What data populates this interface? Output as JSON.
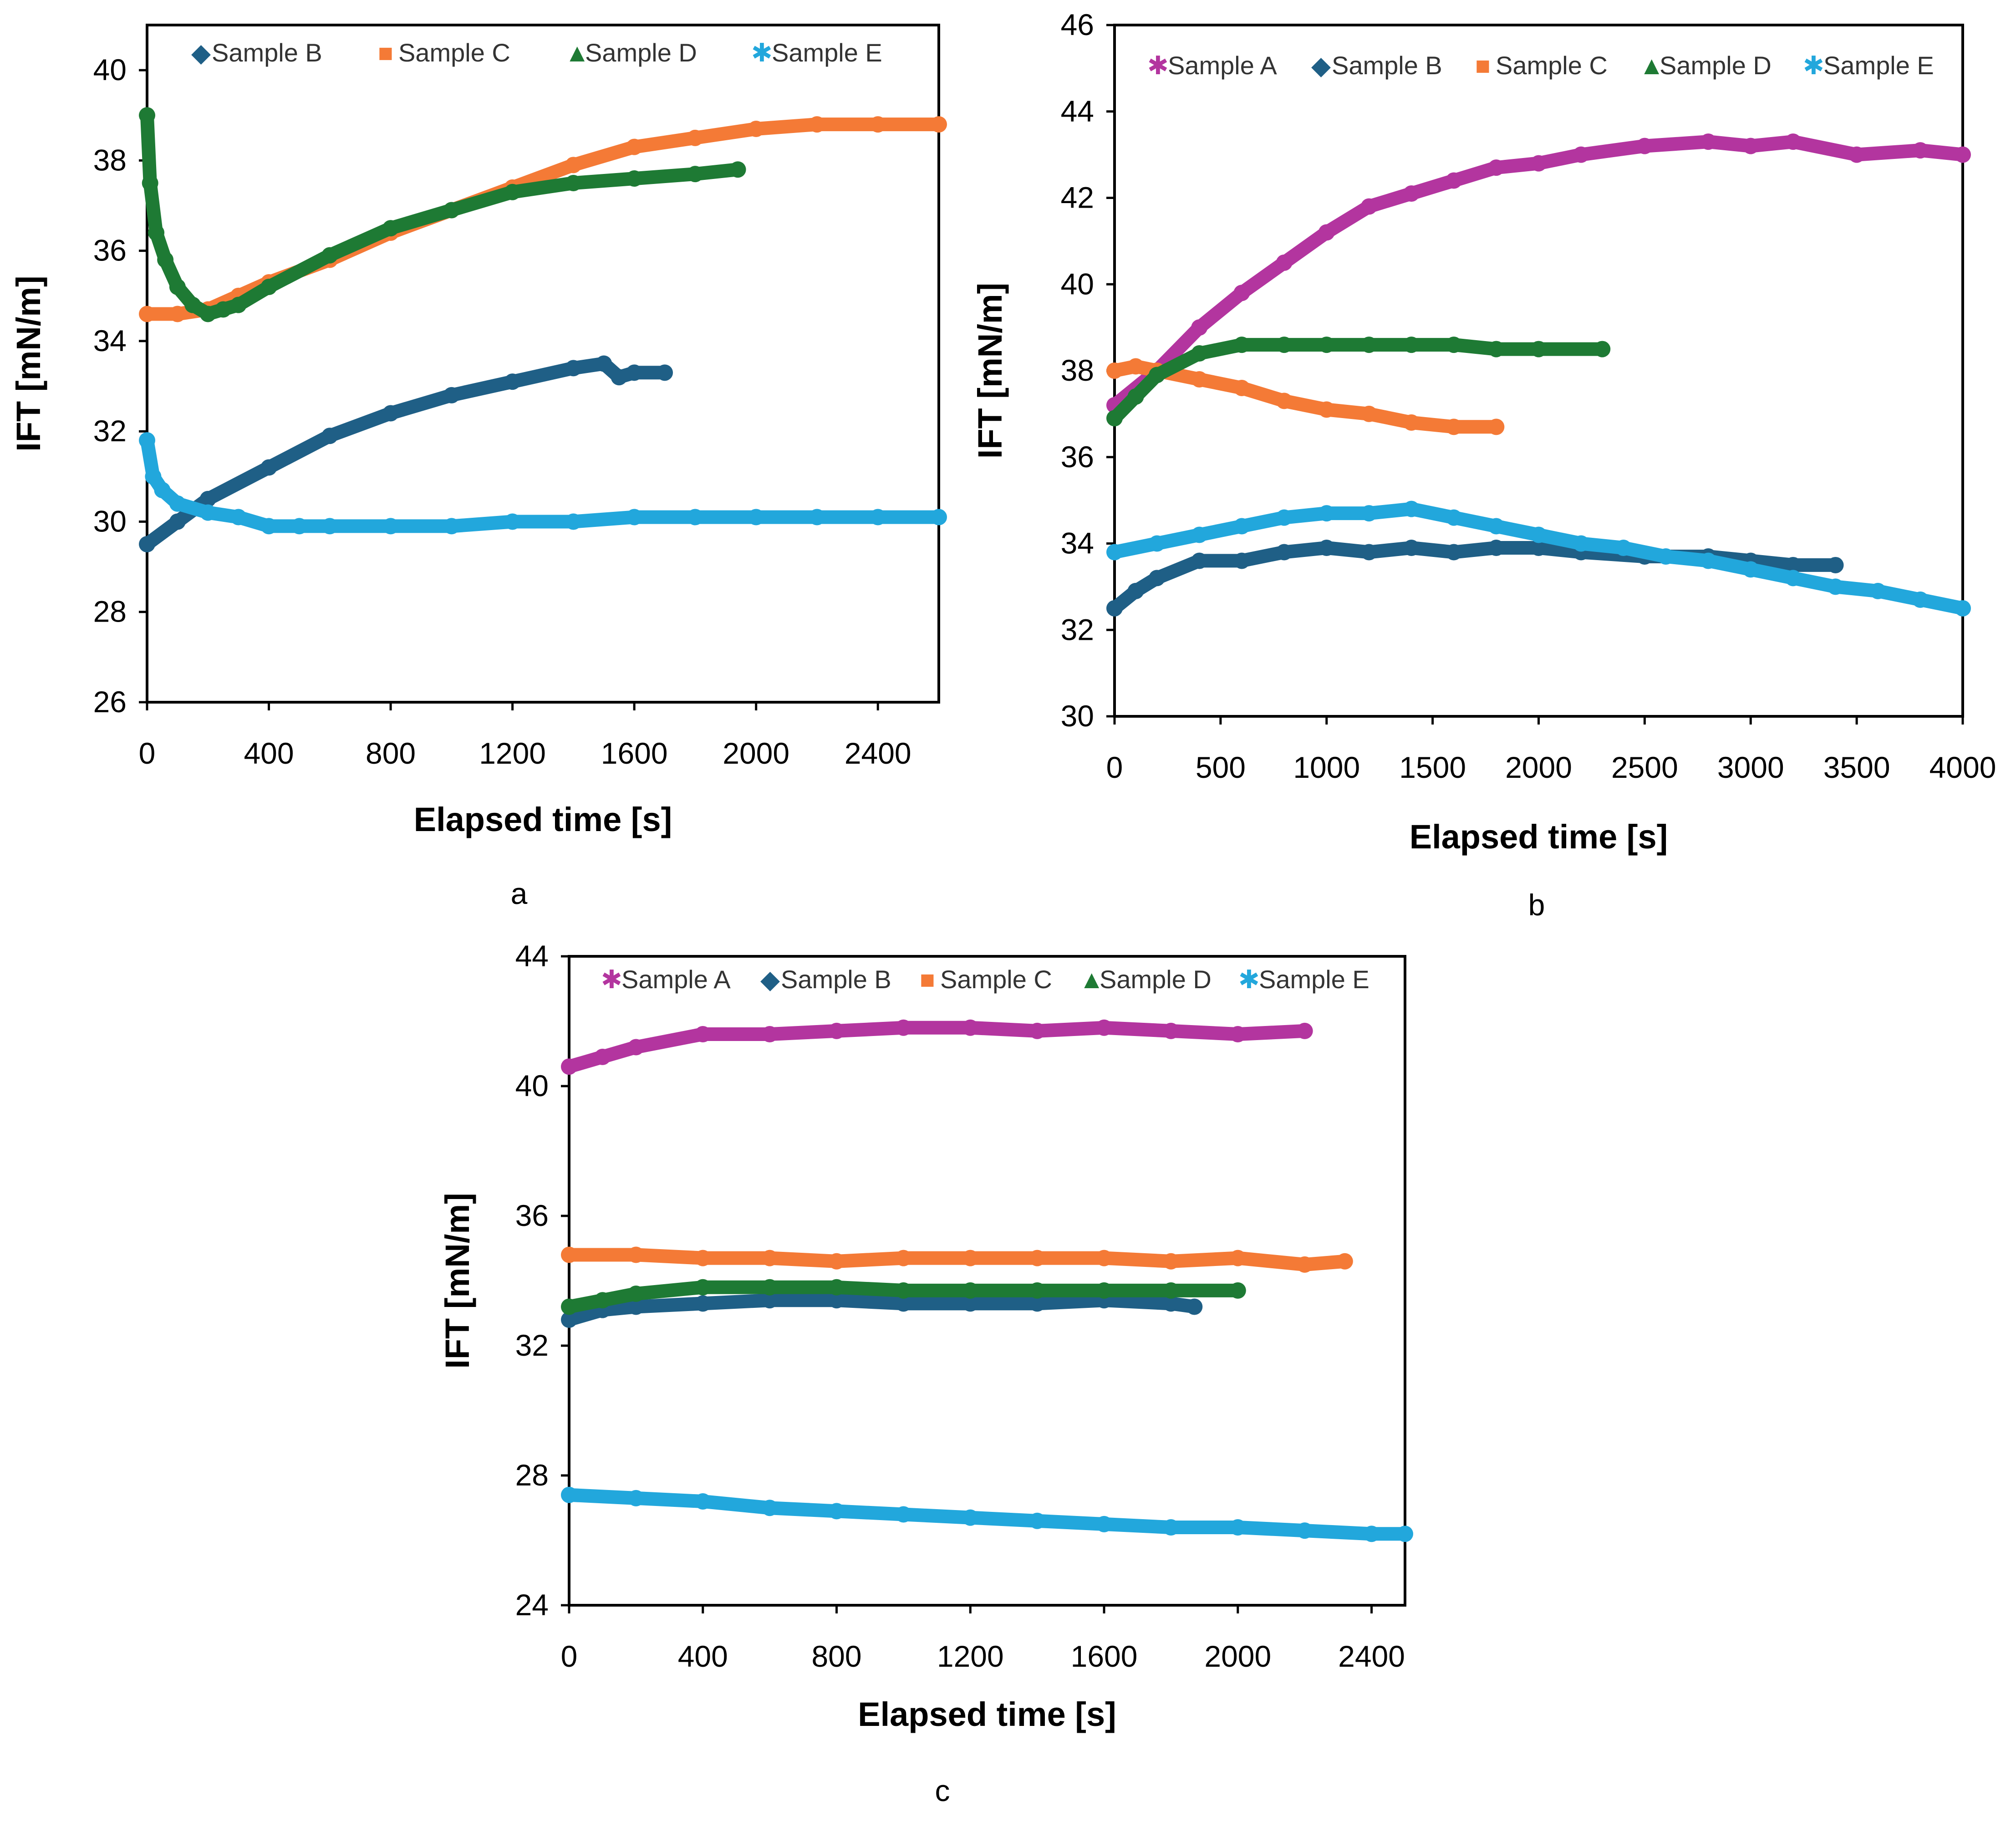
{
  "chart_data": [
    {
      "id": "a",
      "type": "line",
      "panel_label": "a",
      "xlabel": "Elapsed time [s]",
      "ylabel": "IFT [mN/m]",
      "xlim": [
        0,
        2600
      ],
      "ylim": [
        26,
        41
      ],
      "xticks": [
        0,
        400,
        800,
        1200,
        1600,
        2000,
        2400
      ],
      "yticks": [
        26,
        28,
        30,
        32,
        34,
        36,
        38,
        40
      ],
      "legend_position": "top",
      "series": [
        {
          "name": "Sample B",
          "color": "#1f5f86",
          "marker": "◆",
          "x": [
            0,
            100,
            200,
            400,
            600,
            800,
            1000,
            1200,
            1400,
            1500,
            1550,
            1600,
            1700
          ],
          "y": [
            29.5,
            30.0,
            30.5,
            31.2,
            31.9,
            32.4,
            32.8,
            33.1,
            33.4,
            33.5,
            33.2,
            33.3,
            33.3
          ]
        },
        {
          "name": "Sample C",
          "color": "#f47a36",
          "marker": "■",
          "x": [
            0,
            100,
            200,
            300,
            400,
            600,
            800,
            1000,
            1200,
            1400,
            1600,
            1800,
            2000,
            2200,
            2400,
            2600
          ],
          "y": [
            34.6,
            34.6,
            34.7,
            35.0,
            35.3,
            35.8,
            36.4,
            36.9,
            37.4,
            37.9,
            38.3,
            38.5,
            38.7,
            38.8,
            38.8,
            38.8
          ]
        },
        {
          "name": "Sample D",
          "color": "#1e7a34",
          "marker": "▲",
          "x": [
            0,
            10,
            30,
            60,
            100,
            150,
            200,
            250,
            300,
            400,
            600,
            800,
            1000,
            1200,
            1400,
            1600,
            1800,
            1940
          ],
          "y": [
            39.0,
            37.5,
            36.4,
            35.8,
            35.2,
            34.8,
            34.6,
            34.7,
            34.8,
            35.2,
            35.9,
            36.5,
            36.9,
            37.3,
            37.5,
            37.6,
            37.7,
            37.8
          ]
        },
        {
          "name": "Sample E",
          "color": "#22a7dc",
          "marker": "✱",
          "x": [
            0,
            20,
            50,
            100,
            200,
            300,
            400,
            500,
            600,
            800,
            1000,
            1200,
            1400,
            1600,
            1800,
            2000,
            2200,
            2400,
            2600
          ],
          "y": [
            31.8,
            31.0,
            30.7,
            30.4,
            30.2,
            30.1,
            29.9,
            29.9,
            29.9,
            29.9,
            29.9,
            30.0,
            30.0,
            30.1,
            30.1,
            30.1,
            30.1,
            30.1,
            30.1
          ]
        }
      ]
    },
    {
      "id": "b",
      "type": "line",
      "panel_label": "b",
      "xlabel": "Elapsed time [s]",
      "ylabel": "IFT [mN/m]",
      "xlim": [
        0,
        4000
      ],
      "ylim": [
        30,
        46
      ],
      "xticks": [
        0,
        500,
        1000,
        1500,
        2000,
        2500,
        3000,
        3500,
        4000
      ],
      "yticks": [
        30,
        32,
        34,
        36,
        38,
        40,
        42,
        44,
        46
      ],
      "legend_position": "top",
      "series": [
        {
          "name": "Sample A",
          "color": "#b3359f",
          "marker": "✱",
          "x": [
            0,
            200,
            400,
            600,
            800,
            1000,
            1200,
            1400,
            1600,
            1800,
            2000,
            2200,
            2500,
            2800,
            3000,
            3200,
            3500,
            3800,
            4000
          ],
          "y": [
            37.2,
            38.0,
            39.0,
            39.8,
            40.5,
            41.2,
            41.8,
            42.1,
            42.4,
            42.7,
            42.8,
            43.0,
            43.2,
            43.3,
            43.2,
            43.3,
            43.0,
            43.1,
            43.0
          ]
        },
        {
          "name": "Sample B",
          "color": "#1f5f86",
          "marker": "◆",
          "x": [
            0,
            100,
            200,
            400,
            600,
            800,
            1000,
            1200,
            1400,
            1600,
            1800,
            2000,
            2200,
            2500,
            2800,
            3000,
            3200,
            3400
          ],
          "y": [
            32.5,
            32.9,
            33.2,
            33.6,
            33.6,
            33.8,
            33.9,
            33.8,
            33.9,
            33.8,
            33.9,
            33.9,
            33.8,
            33.7,
            33.7,
            33.6,
            33.5,
            33.5
          ]
        },
        {
          "name": "Sample C",
          "color": "#f47a36",
          "marker": "■",
          "x": [
            0,
            100,
            200,
            400,
            600,
            800,
            1000,
            1200,
            1400,
            1600,
            1800
          ],
          "y": [
            38.0,
            38.1,
            38.0,
            37.8,
            37.6,
            37.3,
            37.1,
            37.0,
            36.8,
            36.7,
            36.7
          ]
        },
        {
          "name": "Sample D",
          "color": "#1e7a34",
          "marker": "▲",
          "x": [
            0,
            100,
            200,
            400,
            600,
            800,
            1000,
            1200,
            1400,
            1600,
            1800,
            2000,
            2300
          ],
          "y": [
            36.9,
            37.4,
            37.9,
            38.4,
            38.6,
            38.6,
            38.6,
            38.6,
            38.6,
            38.6,
            38.5,
            38.5,
            38.5
          ]
        },
        {
          "name": "Sample E",
          "color": "#22a7dc",
          "marker": "✱",
          "x": [
            0,
            200,
            400,
            600,
            800,
            1000,
            1200,
            1400,
            1600,
            1800,
            2000,
            2200,
            2400,
            2600,
            2800,
            3000,
            3200,
            3400,
            3600,
            3800,
            4000
          ],
          "y": [
            33.8,
            34.0,
            34.2,
            34.4,
            34.6,
            34.7,
            34.7,
            34.8,
            34.6,
            34.4,
            34.2,
            34.0,
            33.9,
            33.7,
            33.6,
            33.4,
            33.2,
            33.0,
            32.9,
            32.7,
            32.5
          ]
        }
      ]
    },
    {
      "id": "c",
      "type": "line",
      "panel_label": "c",
      "xlabel": "Elapsed time [s]",
      "ylabel": "IFT [mN/m]",
      "xlim": [
        0,
        2500
      ],
      "ylim": [
        24,
        44
      ],
      "xticks": [
        0,
        400,
        800,
        1200,
        1600,
        2000,
        2400
      ],
      "yticks": [
        24,
        28,
        32,
        36,
        40,
        44
      ],
      "legend_position": "top",
      "series": [
        {
          "name": "Sample A",
          "color": "#b3359f",
          "marker": "✱",
          "x": [
            0,
            100,
            200,
            400,
            600,
            800,
            1000,
            1200,
            1400,
            1600,
            1800,
            2000,
            2200
          ],
          "y": [
            40.6,
            40.9,
            41.2,
            41.6,
            41.6,
            41.7,
            41.8,
            41.8,
            41.7,
            41.8,
            41.7,
            41.6,
            41.7
          ]
        },
        {
          "name": "Sample B",
          "color": "#1f5f86",
          "marker": "◆",
          "x": [
            0,
            100,
            200,
            400,
            600,
            800,
            1000,
            1200,
            1400,
            1600,
            1800,
            1870
          ],
          "y": [
            32.8,
            33.1,
            33.2,
            33.3,
            33.4,
            33.4,
            33.3,
            33.3,
            33.3,
            33.4,
            33.3,
            33.2
          ]
        },
        {
          "name": "Sample C",
          "color": "#f47a36",
          "marker": "■",
          "x": [
            0,
            200,
            400,
            600,
            800,
            1000,
            1200,
            1400,
            1600,
            1800,
            2000,
            2200,
            2320
          ],
          "y": [
            34.8,
            34.8,
            34.7,
            34.7,
            34.6,
            34.7,
            34.7,
            34.7,
            34.7,
            34.6,
            34.7,
            34.5,
            34.6
          ]
        },
        {
          "name": "Sample D",
          "color": "#1e7a34",
          "marker": "▲",
          "x": [
            0,
            100,
            200,
            400,
            600,
            800,
            1000,
            1200,
            1400,
            1600,
            1800,
            2000
          ],
          "y": [
            33.2,
            33.4,
            33.6,
            33.8,
            33.8,
            33.8,
            33.7,
            33.7,
            33.7,
            33.7,
            33.7,
            33.7
          ]
        },
        {
          "name": "Sample E",
          "color": "#22a7dc",
          "marker": "✱",
          "x": [
            0,
            200,
            400,
            600,
            800,
            1000,
            1200,
            1400,
            1600,
            1800,
            2000,
            2200,
            2400,
            2500
          ],
          "y": [
            27.4,
            27.3,
            27.2,
            27.0,
            26.9,
            26.8,
            26.7,
            26.6,
            26.5,
            26.4,
            26.4,
            26.3,
            26.2,
            26.2
          ]
        }
      ]
    }
  ]
}
